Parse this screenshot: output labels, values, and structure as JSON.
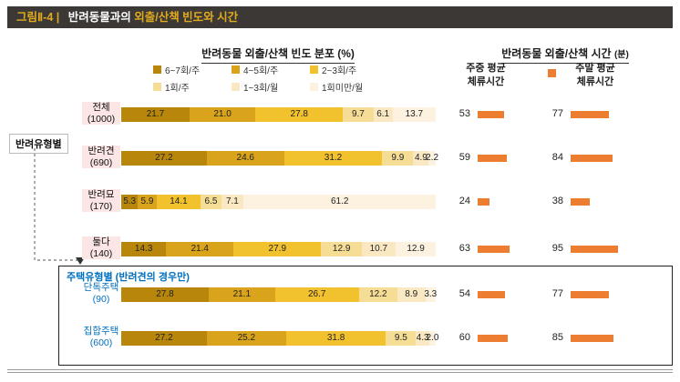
{
  "header": {
    "prefix": "그림Ⅱ-4 |",
    "title_part1": "반려동물과의",
    "title_part2": "외출/산책 빈도와 시간"
  },
  "sections": {
    "left_title": "반려동물 외출/산책 빈도 분포 (%)",
    "right_title": "반려동물 외출/산책 시간",
    "right_title_unit": "(분)",
    "weekday_header_line1": "주중 평균",
    "weekday_header_line2": "체류시간",
    "weekend_header_line1": "주말 평균",
    "weekend_header_line2": "체류시간"
  },
  "legend": [
    {
      "label": "6~7회/주",
      "color": "#b8860b"
    },
    {
      "label": "4~5회/주",
      "color": "#d9a31b"
    },
    {
      "label": "2~3회/주",
      "color": "#f2c12e"
    },
    {
      "label": "1회/주",
      "color": "#f6dd96"
    },
    {
      "label": "1~3회/월",
      "color": "#f9e8c2"
    },
    {
      "label": "1회미만/월",
      "color": "#fcf2df"
    }
  ],
  "groups": {
    "pet_type_label": "반려유형별",
    "housing_box_title": "주택유형별 (반려견의 경우만)"
  },
  "time_bar_color": "#ed7d31",
  "chart_data": {
    "type": "bar",
    "stacked": true,
    "title": "반려동물과의 외출/산책 빈도와 시간",
    "frequency_unit": "%",
    "time_unit": "분",
    "frequency_categories": [
      "6~7회/주",
      "4~5회/주",
      "2~3회/주",
      "1회/주",
      "1~3회/월",
      "1회미만/월"
    ],
    "time_columns": [
      "주중 평균 체류시간",
      "주말 평균 체류시간"
    ],
    "rows": [
      {
        "label": "전체",
        "n": "(1000)",
        "group": "all",
        "values": [
          21.7,
          21.0,
          27.8,
          9.7,
          6.1,
          13.7
        ],
        "weekday_avg": 53,
        "weekend_avg": 77
      },
      {
        "label": "반려견",
        "n": "(690)",
        "group": "pet",
        "values": [
          27.2,
          24.6,
          31.2,
          9.9,
          4.9,
          2.2
        ],
        "weekday_avg": 59,
        "weekend_avg": 84
      },
      {
        "label": "반려묘",
        "n": "(170)",
        "group": "pet",
        "values": [
          5.3,
          5.9,
          14.1,
          6.5,
          7.1,
          61.2
        ],
        "weekday_avg": 24,
        "weekend_avg": 38
      },
      {
        "label": "둘다",
        "n": "(140)",
        "group": "pet",
        "values": [
          14.3,
          21.4,
          27.9,
          12.9,
          10.7,
          12.9
        ],
        "weekday_avg": 63,
        "weekend_avg": 95
      },
      {
        "label": "단독주택",
        "n": "(90)",
        "group": "housing",
        "values": [
          27.8,
          21.1,
          26.7,
          12.2,
          8.9,
          3.3
        ],
        "weekday_avg": 54,
        "weekend_avg": 77
      },
      {
        "label": "집합주택",
        "n": "(600)",
        "group": "housing",
        "values": [
          27.2,
          25.2,
          31.8,
          9.5,
          4.3,
          2.0
        ],
        "weekday_avg": 60,
        "weekend_avg": 85
      }
    ]
  }
}
